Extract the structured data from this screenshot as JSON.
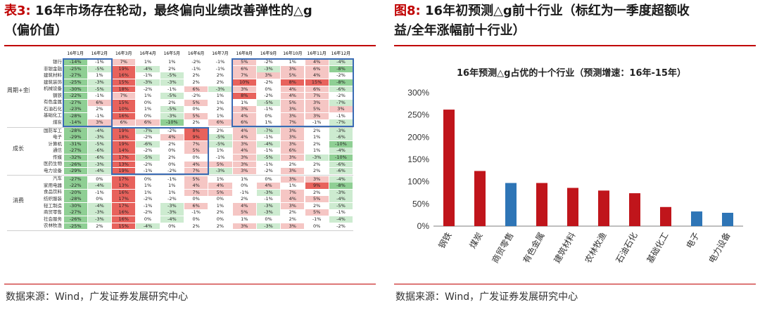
{
  "left": {
    "title_prefix": "表3:",
    "title_line1": "16年市场存在轮动，最终偏向业绩改善弹性的△g",
    "title_line2": "（偏价值）",
    "source": "数据来源：Wind，广发证券发展研究中心"
  },
  "right": {
    "title_prefix": "图8:",
    "title_line1": "16年初预测△g前十行业（标红为一季度超额收",
    "title_line2": "益/全年涨幅前十行业）",
    "source": "数据来源：Wind，广发证券发展研究中心"
  },
  "colors": {
    "accent_red": "#c00000",
    "bar_red": "#c0151b",
    "bar_blue": "#2e75b6",
    "heat_red": "#e8625c",
    "heat_pink": "#f5c6c4",
    "heat_green": "#8fcf94",
    "heat_lightgreen": "#cdebd0",
    "highlight_blue": "#3a6bb5"
  },
  "chart_data": [
    {
      "type": "table",
      "months": [
        "16年1月",
        "16年2月",
        "16年3月",
        "16年4月",
        "16年5月",
        "16年6月",
        "16年7月",
        "16年8月",
        "16年9月",
        "16年10月",
        "16年11月",
        "16年12月"
      ],
      "groups": [
        {
          "name": "周期+金融",
          "rows": [
            {
              "industry": "银行",
              "values": [
                "-14%",
                "-1%",
                "7%",
                "1%",
                "1%",
                "-2%",
                "-1%",
                "5%",
                "-2%",
                "1%",
                "4%",
                "-4%"
              ]
            },
            {
              "industry": "非银金融",
              "values": [
                "-25%",
                "-5%",
                "19%",
                "-4%",
                "2%",
                "-1%",
                "-1%",
                "6%",
                "-3%",
                "3%",
                "6%",
                "-8%"
              ]
            },
            {
              "industry": "建筑材料",
              "values": [
                "-27%",
                "1%",
                "16%",
                "-1%",
                "-5%",
                "2%",
                "2%",
                "7%",
                "3%",
                "5%",
                "4%",
                "-2%"
              ]
            },
            {
              "industry": "建筑装饰",
              "values": [
                "-25%",
                "-3%",
                "15%",
                "-3%",
                "-3%",
                "2%",
                "2%",
                "10%",
                "-2%",
                "8%",
                "15%",
                "-8%"
              ]
            },
            {
              "industry": "机械设备",
              "values": [
                "-30%",
                "-5%",
                "18%",
                "-2%",
                "-1%",
                "6%",
                "-3%",
                "3%",
                "0%",
                "4%",
                "6%",
                "-6%"
              ]
            },
            {
              "industry": "钢铁",
              "values": [
                "-22%",
                "-1%",
                "7%",
                "1%",
                "-5%",
                "-2%",
                "1%",
                "8%",
                "-2%",
                "4%",
                "7%",
                "-2%"
              ]
            },
            {
              "industry": "有色金属",
              "values": [
                "-27%",
                "6%",
                "15%",
                "0%",
                "2%",
                "5%",
                "1%",
                "1%",
                "-5%",
                "5%",
                "3%",
                "-7%"
              ]
            },
            {
              "industry": "石油石化",
              "values": [
                "-23%",
                "2%",
                "10%",
                "1%",
                "-5%",
                "0%",
                "2%",
                "3%",
                "-1%",
                "3%",
                "5%",
                "3%"
              ]
            },
            {
              "industry": "基础化工",
              "values": [
                "-28%",
                "-1%",
                "16%",
                "0%",
                "-3%",
                "5%",
                "1%",
                "4%",
                "0%",
                "3%",
                "3%",
                "-1%"
              ]
            },
            {
              "industry": "煤炭",
              "values": [
                "-14%",
                "3%",
                "6%",
                "6%",
                "-10%",
                "2%",
                "6%",
                "6%",
                "1%",
                "7%",
                "-1%",
                "-7%"
              ]
            }
          ]
        },
        {
          "name": "成长",
          "rows": [
            {
              "industry": "国防军工",
              "values": [
                "-28%",
                "-4%",
                "19%",
                "-7%",
                "-2%",
                "8%",
                "2%",
                "4%",
                "-7%",
                "3%",
                "2%",
                "-3%"
              ]
            },
            {
              "industry": "电子",
              "values": [
                "-29%",
                "-3%",
                "18%",
                "-2%",
                "4%",
                "9%",
                "-5%",
                "4%",
                "-1%",
                "3%",
                "1%",
                "-6%"
              ]
            },
            {
              "industry": "计算机",
              "values": [
                "-31%",
                "-5%",
                "19%",
                "-6%",
                "2%",
                "7%",
                "-5%",
                "3%",
                "-4%",
                "3%",
                "2%",
                "-10%"
              ]
            },
            {
              "industry": "通信",
              "values": [
                "-27%",
                "-6%",
                "14%",
                "-2%",
                "0%",
                "5%",
                "1%",
                "4%",
                "-1%",
                "6%",
                "1%",
                "-4%"
              ]
            },
            {
              "industry": "传媒",
              "values": [
                "-32%",
                "-6%",
                "17%",
                "-5%",
                "2%",
                "0%",
                "-1%",
                "3%",
                "-5%",
                "3%",
                "-3%",
                "-10%"
              ]
            },
            {
              "industry": "医药生物",
              "values": [
                "-26%",
                "-3%",
                "13%",
                "-2%",
                "0%",
                "4%",
                "5%",
                "3%",
                "-1%",
                "2%",
                "2%",
                "-6%"
              ]
            },
            {
              "industry": "电力设备",
              "values": [
                "-29%",
                "-4%",
                "19%",
                "-1%",
                "-2%",
                "7%",
                "-3%",
                "3%",
                "-2%",
                "3%",
                "2%",
                "-6%"
              ]
            }
          ]
        },
        {
          "name": "消费",
          "rows": [
            {
              "industry": "汽车",
              "values": [
                "-27%",
                "0%",
                "17%",
                "0%",
                "-1%",
                "5%",
                "1%",
                "1%",
                "0%",
                "3%",
                "3%",
                "-4%"
              ]
            },
            {
              "industry": "家用电器",
              "values": [
                "-22%",
                "-4%",
                "13%",
                "1%",
                "1%",
                "4%",
                "4%",
                "0%",
                "4%",
                "1%",
                "9%",
                "-8%"
              ]
            },
            {
              "industry": "食品饮料",
              "values": [
                "-20%",
                "-1%",
                "16%",
                "1%",
                "1%",
                "7%",
                "5%",
                "-1%",
                "-3%",
                "7%",
                "2%",
                "-3%"
              ]
            },
            {
              "industry": "纺织服装",
              "values": [
                "-28%",
                "0%",
                "17%",
                "-2%",
                "-2%",
                "0%",
                "0%",
                "2%",
                "-1%",
                "4%",
                "5%",
                "-4%"
              ]
            },
            {
              "industry": "轻工制造",
              "values": [
                "-30%",
                "-4%",
                "17%",
                "-1%",
                "-3%",
                "6%",
                "1%",
                "4%",
                "-3%",
                "3%",
                "2%",
                "-5%"
              ]
            },
            {
              "industry": "商贸零售",
              "values": [
                "-27%",
                "-3%",
                "16%",
                "-2%",
                "-3%",
                "-1%",
                "2%",
                "5%",
                "-3%",
                "2%",
                "5%",
                "-1%"
              ]
            },
            {
              "industry": "社会服务",
              "values": [
                "-26%",
                "-3%",
                "16%",
                "0%",
                "-4%",
                "0%",
                "0%",
                "1%",
                "0%",
                "2%",
                "-1%",
                "-4%"
              ]
            },
            {
              "industry": "农林牧渔",
              "values": [
                "-25%",
                "2%",
                "15%",
                "-4%",
                "0%",
                "2%",
                "2%",
                "3%",
                "-3%",
                "3%",
                "0%",
                "-2%"
              ]
            }
          ]
        }
      ]
    },
    {
      "type": "bar",
      "title": "16年预测△g占优的十个行业（预测增速：16年-15年）",
      "categories": [
        "钢铁",
        "煤炭",
        "商贸零售",
        "有色金属",
        "建筑材料",
        "农林牧渔",
        "石油石化",
        "基础化工",
        "电子",
        "电力设备"
      ],
      "values": [
        262,
        124,
        97,
        97,
        86,
        80,
        74,
        43,
        33,
        30
      ],
      "value_unit": "%",
      "highlight": [
        "red",
        "red",
        "blue",
        "red",
        "red",
        "red",
        "red",
        "red",
        "blue",
        "blue"
      ],
      "ylim": [
        0,
        300
      ],
      "yticks": [
        "0%",
        "50%",
        "100%",
        "150%",
        "200%",
        "250%",
        "300%"
      ],
      "grid": false,
      "legend": "none"
    }
  ]
}
